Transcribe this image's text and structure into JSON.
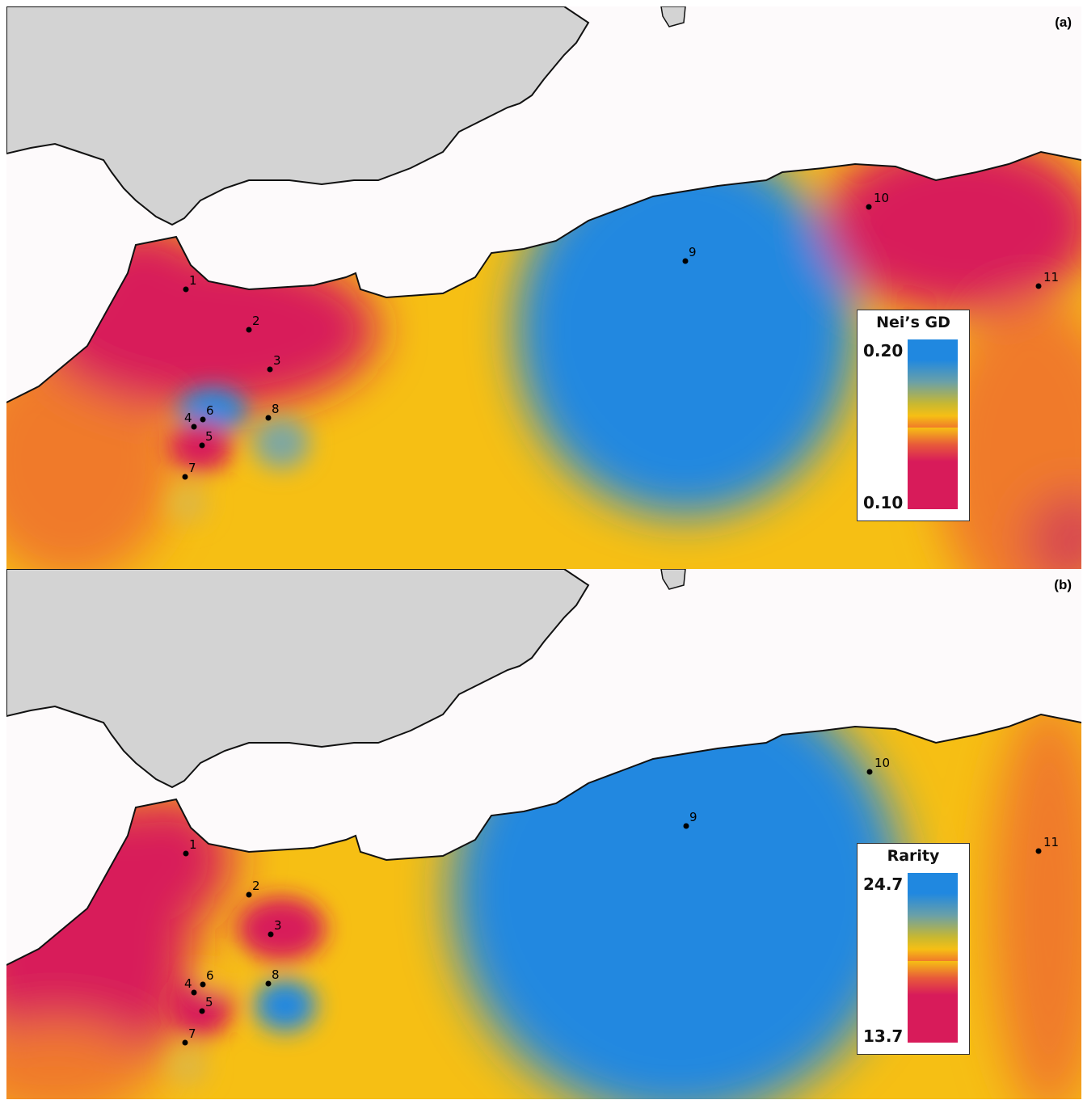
{
  "colors": {
    "land": "#d3d3d3",
    "sea_white": "#fdfafb",
    "low": "#d81b5a",
    "mid_orange": "#f07a2a",
    "mid_yellow": "#f6bf14",
    "high": "#2088e0",
    "coast": "#111111"
  },
  "panels": [
    {
      "label": "(a)",
      "legend": {
        "title": "Nei’s GD",
        "max": "0.20",
        "min": "0.10"
      },
      "sites": [
        {
          "id": "1",
          "value_rank": "low"
        },
        {
          "id": "2",
          "value_rank": "low"
        },
        {
          "id": "3",
          "value_rank": "low"
        },
        {
          "id": "4",
          "value_rank": "mid"
        },
        {
          "id": "5",
          "value_rank": "low"
        },
        {
          "id": "6",
          "value_rank": "high"
        },
        {
          "id": "7",
          "value_rank": "mid"
        },
        {
          "id": "8",
          "value_rank": "mid-high"
        },
        {
          "id": "9",
          "value_rank": "high"
        },
        {
          "id": "10",
          "value_rank": "low"
        },
        {
          "id": "11",
          "value_rank": "mid-low"
        }
      ]
    },
    {
      "label": "(b)",
      "legend": {
        "title": "Rarity",
        "max": "24.7",
        "min": "13.7"
      },
      "sites": [
        {
          "id": "1",
          "value_rank": "low"
        },
        {
          "id": "2",
          "value_rank": "mid"
        },
        {
          "id": "3",
          "value_rank": "low"
        },
        {
          "id": "4",
          "value_rank": "low"
        },
        {
          "id": "5",
          "value_rank": "low"
        },
        {
          "id": "6",
          "value_rank": "mid"
        },
        {
          "id": "7",
          "value_rank": "mid"
        },
        {
          "id": "8",
          "value_rank": "high"
        },
        {
          "id": "9",
          "value_rank": "high"
        },
        {
          "id": "10",
          "value_rank": "mid"
        },
        {
          "id": "11",
          "value_rank": "mid-low"
        }
      ]
    }
  ]
}
